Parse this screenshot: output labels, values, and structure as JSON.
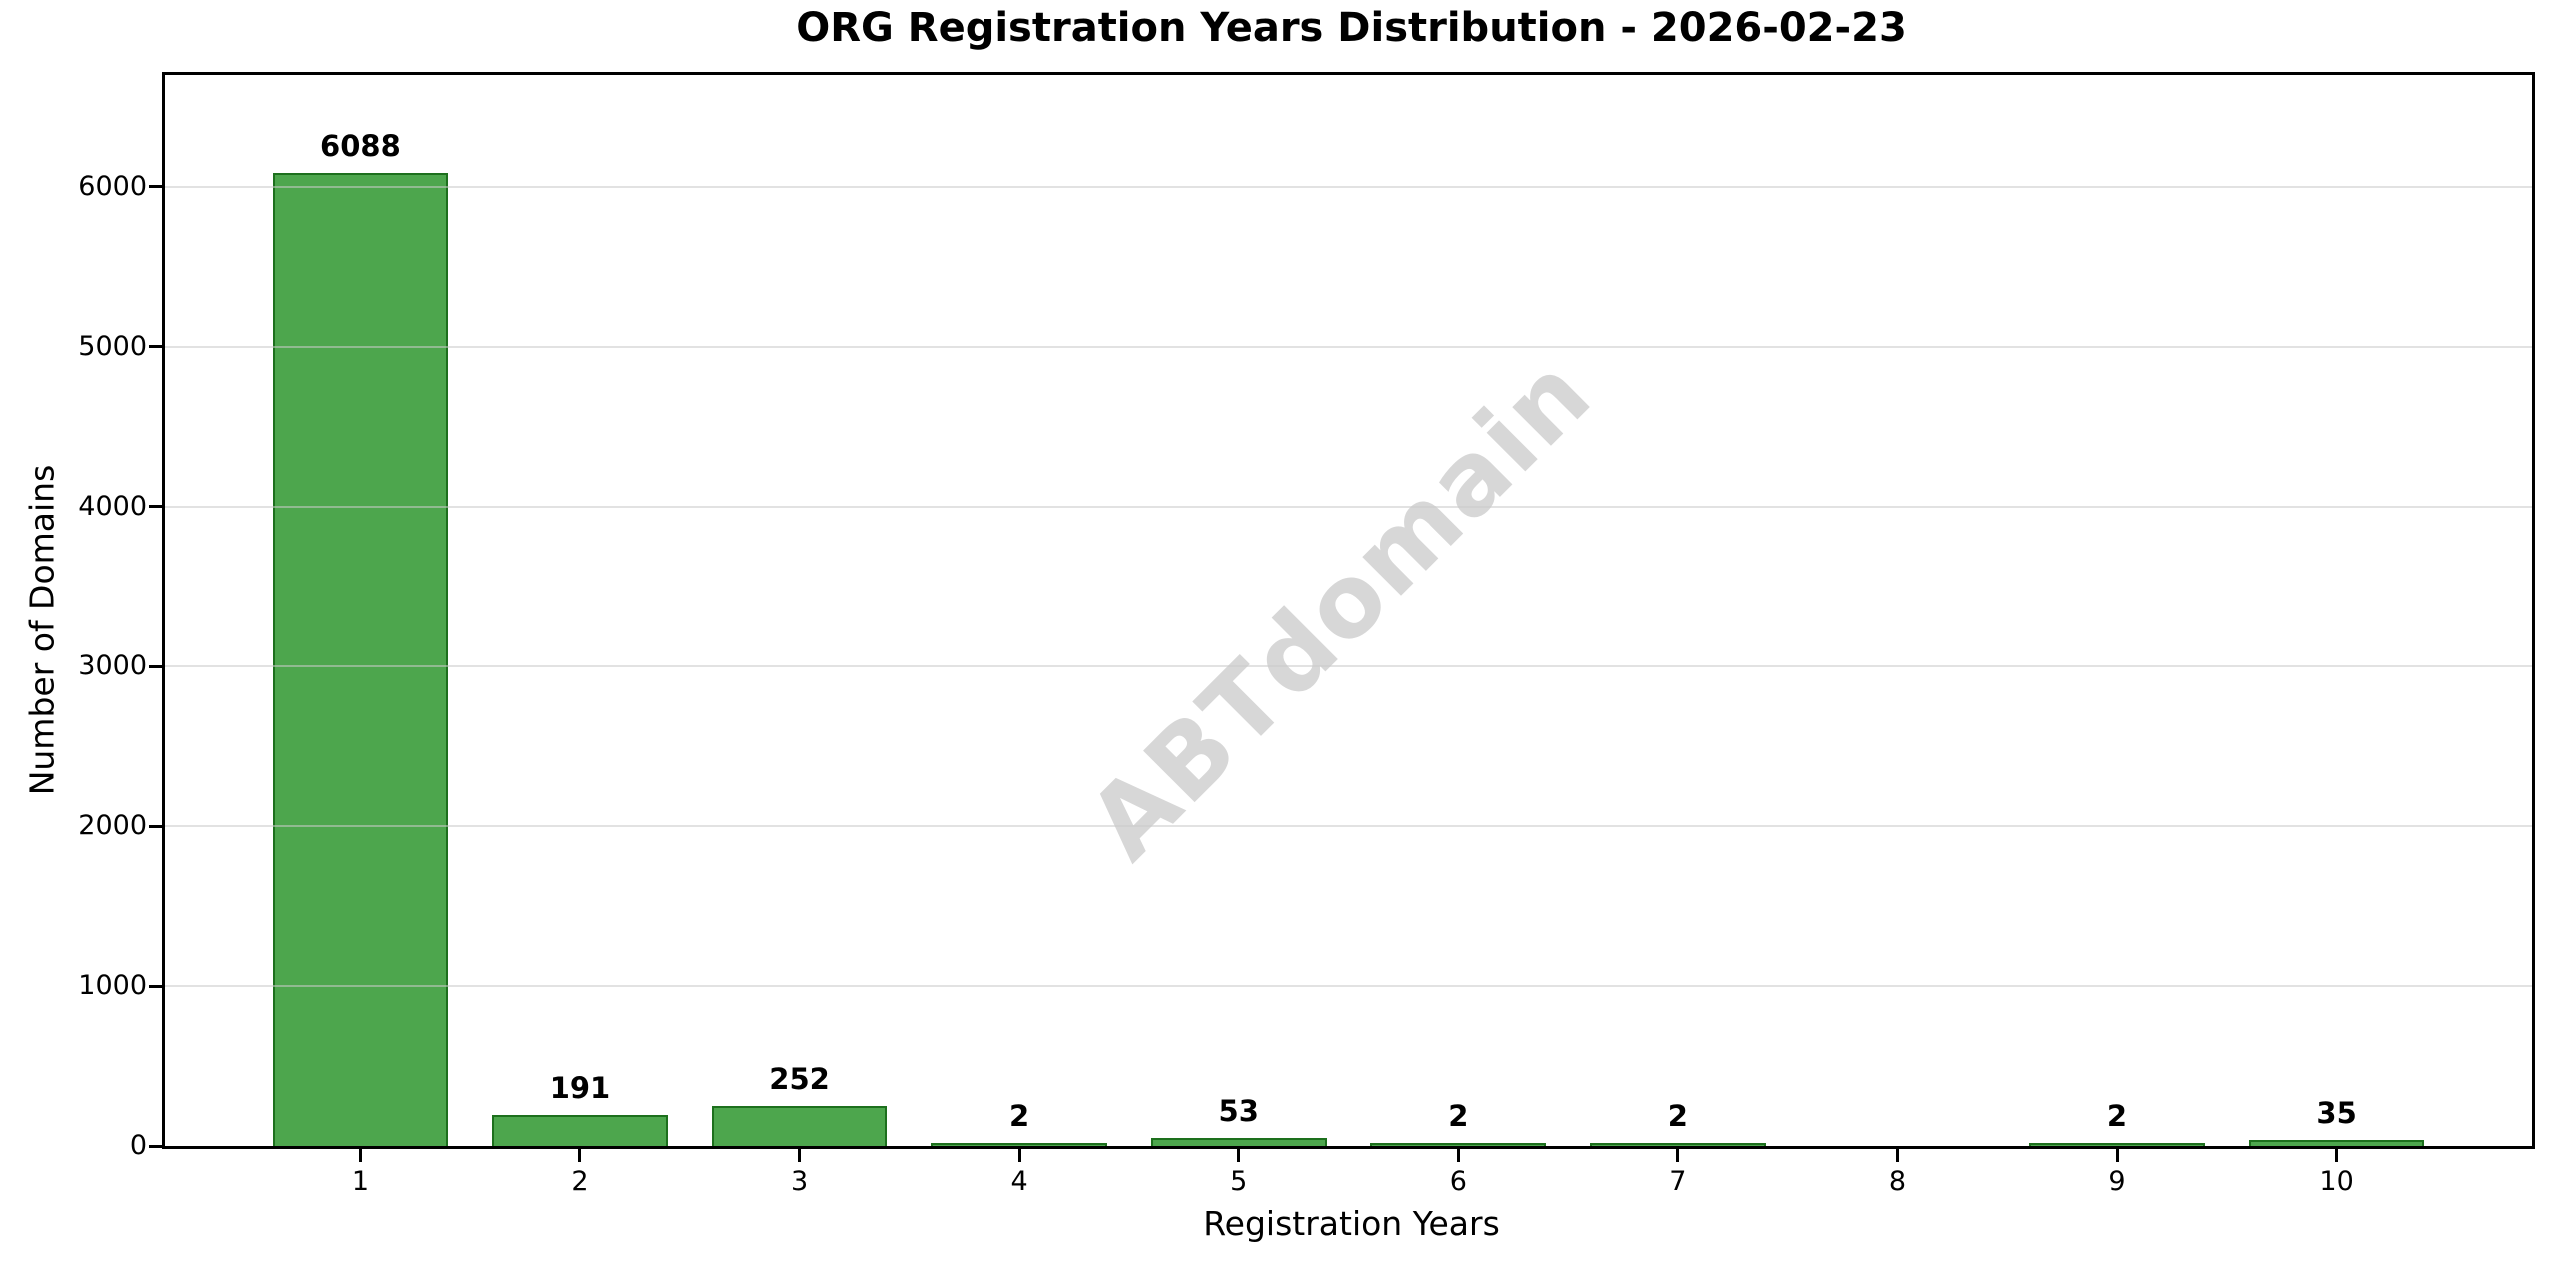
{
  "chart_data": {
    "type": "bar",
    "title": "ORG Registration Years Distribution - 2026-02-23",
    "xlabel": "Registration Years",
    "ylabel": "Number of Domains",
    "watermark": "ABTdomain",
    "categories": [
      1,
      2,
      3,
      4,
      5,
      6,
      7,
      8,
      9,
      10
    ],
    "values": [
      6088,
      191,
      252,
      2,
      53,
      2,
      2,
      null,
      2,
      35
    ],
    "bar_value_labels": [
      "6088",
      "191",
      "252",
      "2",
      "53",
      "2",
      "2",
      "",
      "2",
      "35"
    ],
    "yticks": [
      0,
      1000,
      2000,
      3000,
      4000,
      5000,
      6000
    ],
    "ylim": [
      0,
      6700
    ],
    "xlim": [
      0.11,
      10.89
    ],
    "bar_width": 0.8,
    "grid": true,
    "legend": "none",
    "colors": {
      "bar_fill": "#4da64d",
      "bar_edge": "#1d701d",
      "gridline": "rgba(203,203,203,0.55)",
      "spine": "#000000",
      "text": "#000000",
      "watermark": "#d7d7d7",
      "background": "#ffffff"
    }
  }
}
